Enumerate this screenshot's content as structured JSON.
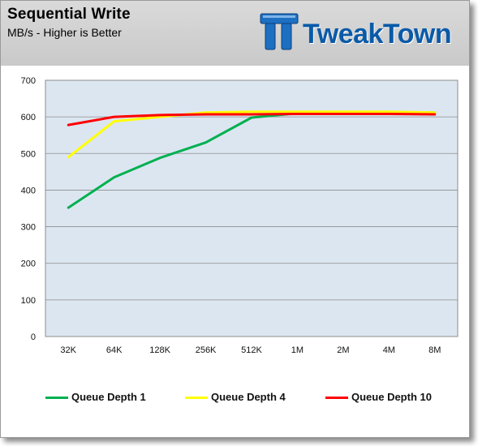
{
  "header": {
    "title": "Sequential Write",
    "subtitle": "MB/s - Higher is Better",
    "logo_text": "TweakTown"
  },
  "colors": {
    "plot_background": "#dce6f1",
    "grid": "#8c8c8c",
    "logo_blue": "#0a5aa8"
  },
  "chart_data": {
    "type": "line",
    "title": "Sequential Write",
    "subtitle": "MB/s - Higher is Better",
    "xlabel": "",
    "ylabel": "",
    "categories": [
      "32K",
      "64K",
      "128K",
      "256K",
      "512K",
      "1M",
      "2M",
      "4M",
      "8M"
    ],
    "ylim": [
      0,
      700
    ],
    "yticks": [
      "0",
      "100",
      "200",
      "300",
      "400",
      "500",
      "600",
      "700"
    ],
    "grid": true,
    "legend_position": "bottom",
    "series": [
      {
        "name": "Queue Depth 1",
        "color": "#00b050",
        "values": [
          352,
          435,
          488,
          530,
          598,
          610,
          612,
          613,
          612
        ]
      },
      {
        "name": "Queue Depth 4",
        "color": "#ffff00",
        "values": [
          490,
          588,
          600,
          612,
          614,
          614,
          614,
          614,
          612
        ]
      },
      {
        "name": "Queue Depth 10",
        "color": "#ff0000",
        "values": [
          578,
          600,
          605,
          607,
          607,
          608,
          608,
          608,
          607
        ]
      }
    ]
  }
}
